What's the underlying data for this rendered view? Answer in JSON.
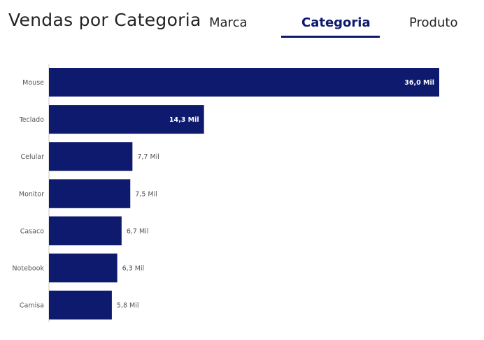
{
  "header": {
    "title": "Vendas por Categoria"
  },
  "tabs": [
    {
      "label": "Marca",
      "active": false
    },
    {
      "label": "Categoria",
      "active": true
    },
    {
      "label": "Produto",
      "active": false
    }
  ],
  "colors": {
    "bar": "#0d1a6e",
    "accent": "#0d1a6e"
  },
  "chart_data": {
    "type": "bar",
    "orientation": "horizontal",
    "categories": [
      "Mouse",
      "Teclado",
      "Celular",
      "Monitor",
      "Casaco",
      "Notebook",
      "Camisa"
    ],
    "values": [
      36000,
      14300,
      7700,
      7500,
      6700,
      6300,
      5800
    ],
    "data_labels": [
      "36,0 Mil",
      "14,3 Mil",
      "7,7 Mil",
      "7,5 Mil",
      "6,7 Mil",
      "6,3 Mil",
      "5,8 Mil"
    ],
    "xlim": [
      0,
      36000
    ],
    "grid": false,
    "legend": "none"
  }
}
